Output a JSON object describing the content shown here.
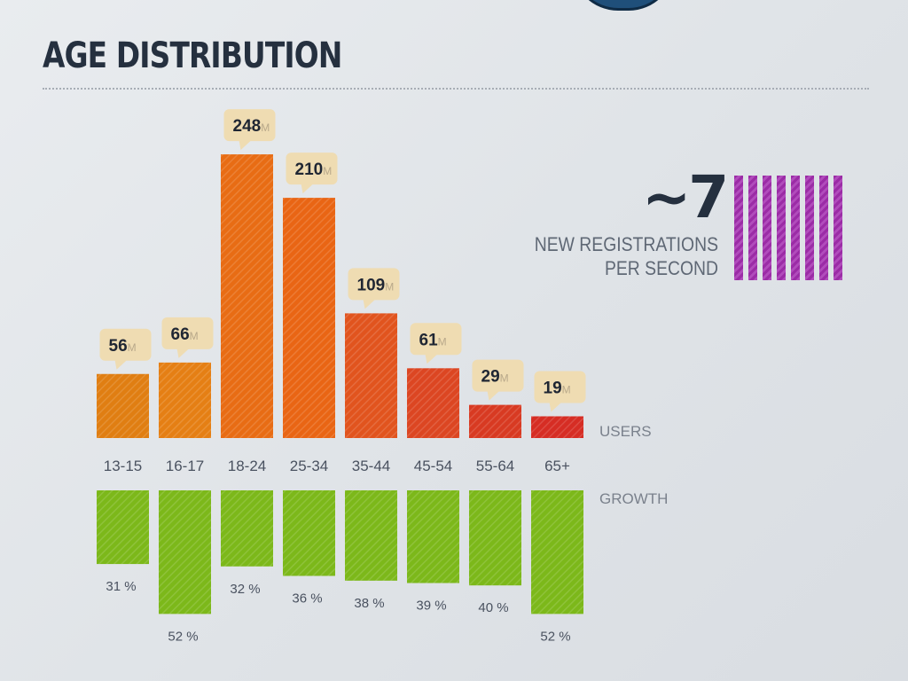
{
  "title": "AGE DISTRIBUTION",
  "registrations": {
    "number": "~7",
    "caption_line1": "NEW REGISTRATIONS",
    "caption_line2": "PER SECOND",
    "bar_count": 8,
    "bar_color": "#a53db1"
  },
  "chart_data": {
    "type": "bar",
    "categories": [
      "13-15",
      "16-17",
      "18-24",
      "25-34",
      "35-44",
      "45-54",
      "55-64",
      "65+"
    ],
    "series": [
      {
        "name": "USERS",
        "values": [
          56,
          66,
          248,
          210,
          109,
          61,
          29,
          19
        ],
        "labels": [
          "56",
          "66",
          "248",
          "210",
          "109",
          "61",
          "29",
          "19"
        ],
        "unit": "M",
        "colors": [
          "#e07e12",
          "#e57f14",
          "#e86c14",
          "#e96514",
          "#e1541e",
          "#dc4622",
          "#d83a22",
          "#d62d24"
        ]
      },
      {
        "name": "GROWTH",
        "values": [
          31,
          52,
          32,
          36,
          38,
          39,
          40,
          52
        ],
        "labels": [
          "31 %",
          "52 %",
          "32 %",
          "36 %",
          "38 %",
          "39 %",
          "40 %",
          "52 %"
        ],
        "color": "#7cb81a"
      }
    ],
    "title": "AGE DISTRIBUTION",
    "xlabel": "",
    "ylabel": ""
  }
}
